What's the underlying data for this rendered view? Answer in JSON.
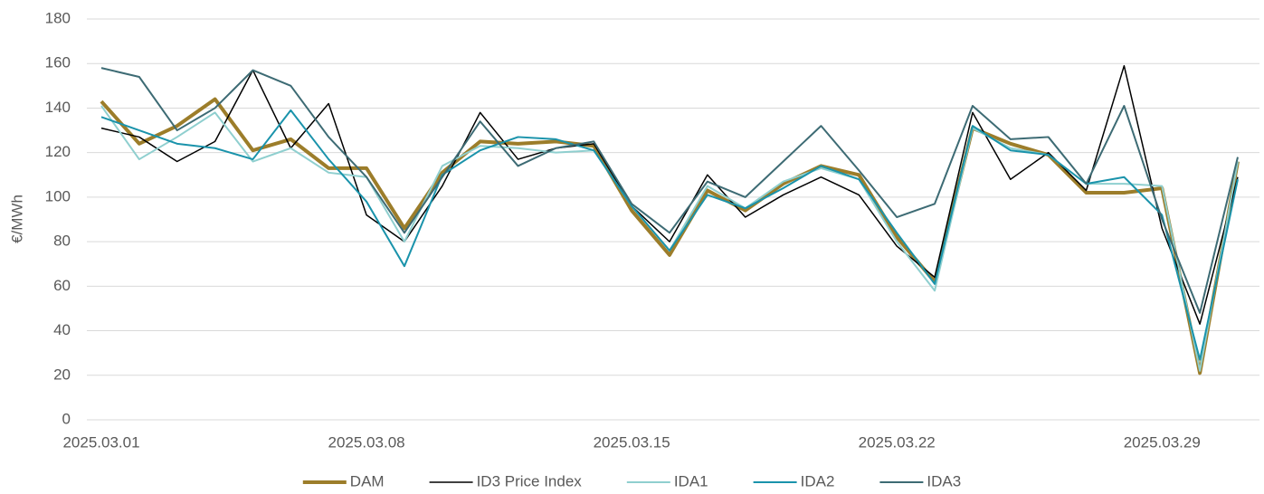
{
  "chart_data": {
    "type": "line",
    "y_label": "€/MWh",
    "categories": [
      "2025.03.01",
      null,
      null,
      null,
      null,
      null,
      null,
      "2025.03.08",
      null,
      null,
      null,
      null,
      null,
      null,
      "2025.03.15",
      null,
      null,
      null,
      null,
      null,
      null,
      "2025.03.22",
      null,
      null,
      null,
      null,
      null,
      null,
      "2025.03.29",
      null,
      null
    ],
    "series": [
      {
        "name": "DAM",
        "color": "#9c7d2a",
        "width": 4,
        "values": [
          143,
          124,
          132,
          144,
          121,
          126,
          113,
          113,
          86,
          111,
          125,
          124,
          125,
          123,
          94,
          74,
          103,
          94,
          106,
          114,
          110,
          82,
          62,
          131,
          124,
          119,
          102,
          102,
          104,
          21,
          116
        ]
      },
      {
        "name": "ID3 Price Index",
        "color": "#000000",
        "width": 1.5,
        "values": [
          131,
          127,
          116,
          125,
          157,
          122,
          142,
          92,
          80,
          105,
          138,
          117,
          122,
          124,
          96,
          80,
          110,
          91,
          101,
          109,
          101,
          78,
          64,
          138,
          108,
          120,
          103,
          159,
          86,
          43,
          109
        ]
      },
      {
        "name": "IDA1",
        "color": "#8fcfcf",
        "width": 2,
        "values": [
          141,
          117,
          127,
          138,
          116,
          122,
          111,
          109,
          80,
          114,
          123,
          122,
          120,
          121,
          96,
          76,
          105,
          95,
          107,
          113,
          108,
          80,
          58,
          131,
          122,
          119,
          106,
          106,
          105,
          22,
          116
        ]
      },
      {
        "name": "IDA2",
        "color": "#1a93ab",
        "width": 2,
        "values": [
          136,
          130,
          124,
          122,
          117,
          139,
          117,
          98,
          69,
          110,
          121,
          127,
          126,
          121,
          96,
          76,
          101,
          95,
          104,
          114,
          108,
          84,
          61,
          132,
          121,
          119,
          106,
          109,
          92,
          27,
          108
        ]
      },
      {
        "name": "IDA3",
        "color": "#3d6b74",
        "width": 2,
        "values": [
          158,
          154,
          130,
          140,
          157,
          150,
          127,
          109,
          84,
          109,
          134,
          114,
          122,
          125,
          97,
          84,
          107,
          100,
          116,
          132,
          112,
          91,
          97,
          141,
          126,
          127,
          106,
          141,
          90,
          48,
          118
        ]
      }
    ],
    "ylim": [
      0,
      180
    ],
    "yticks": [
      0,
      20,
      40,
      60,
      80,
      100,
      120,
      140,
      160,
      180
    ],
    "grid": true,
    "legend": "bottom"
  }
}
